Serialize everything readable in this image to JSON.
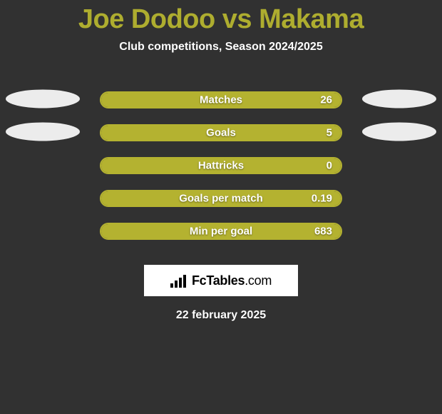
{
  "title_color": "#aead2f",
  "bar_colors": {
    "left": "#b4b230",
    "right": "#313131",
    "border": "#b4b230"
  },
  "header": {
    "player_left": "Joe Dodoo",
    "vs": "vs",
    "player_right": "Makama",
    "subtitle": "Club competitions, Season 2024/2025"
  },
  "stats": [
    {
      "label": "Matches",
      "value": "26",
      "left_pct": 100,
      "ellipses": true
    },
    {
      "label": "Goals",
      "value": "5",
      "left_pct": 100,
      "ellipses": true
    },
    {
      "label": "Hattricks",
      "value": "0",
      "left_pct": 100,
      "ellipses": false
    },
    {
      "label": "Goals per match",
      "value": "0.19",
      "left_pct": 100,
      "ellipses": false
    },
    {
      "label": "Min per goal",
      "value": "683",
      "left_pct": 100,
      "ellipses": false
    }
  ],
  "brand": {
    "name_strong": "FcTables",
    "name_light": ".com"
  },
  "date": "22 february 2025"
}
